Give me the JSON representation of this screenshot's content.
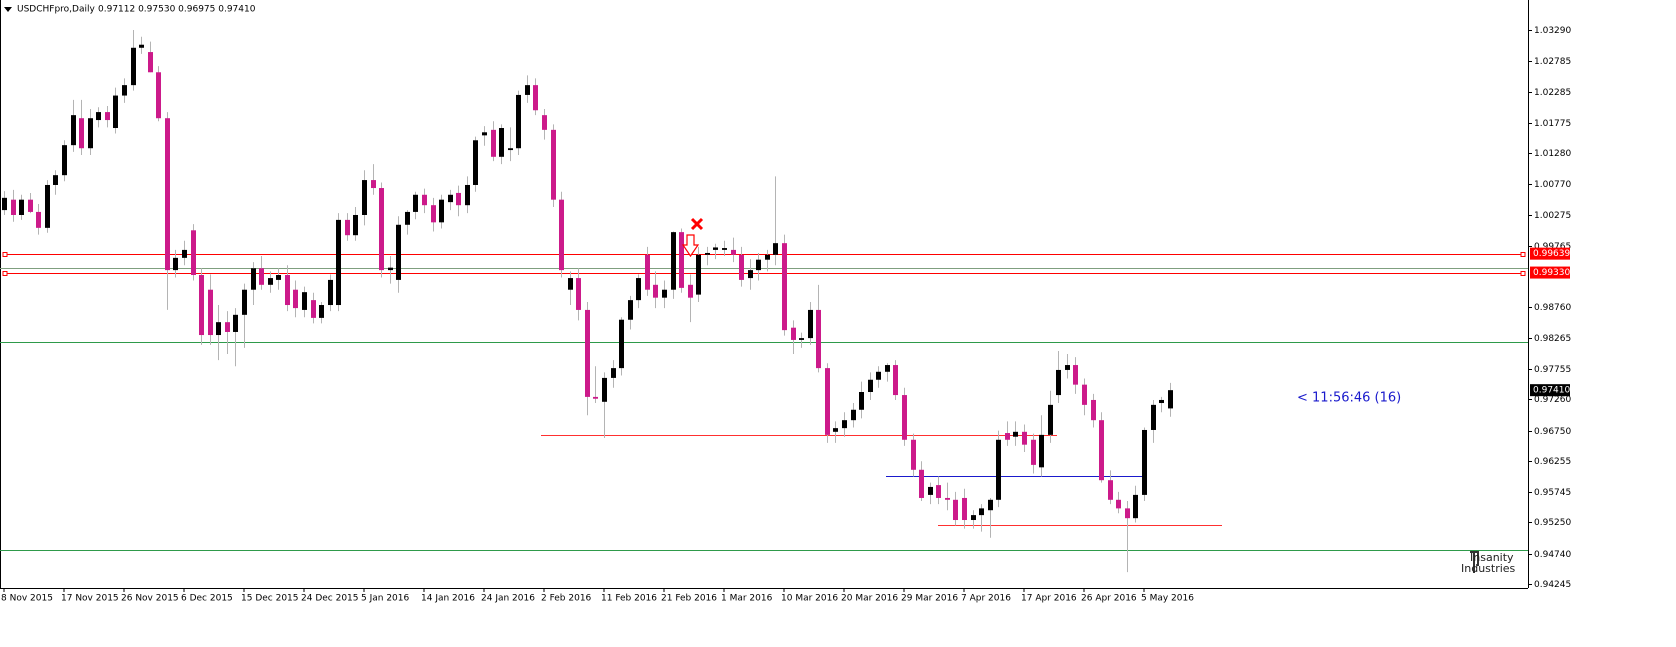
{
  "chart_data": {
    "type": "candlestick",
    "title": "USDCHFpro,Daily",
    "subtitle": "0.97112 0.97530 0.96975 0.97410",
    "x": [
      "8 Nov 2015",
      null,
      null,
      null,
      null,
      null,
      null,
      "17 Nov 2015",
      null,
      null,
      null,
      null,
      null,
      null,
      "26 Nov 2015",
      null,
      null,
      null,
      null,
      null,
      null,
      "6 Dec 2015",
      null,
      null,
      null,
      null,
      null,
      null,
      "15 Dec 2015",
      null,
      null,
      null,
      null,
      null,
      null,
      "24 Dec 2015",
      null,
      null,
      null,
      null,
      null,
      null,
      "5 Jan 2016",
      null,
      null,
      null,
      null,
      null,
      null,
      "14 Jan 2016",
      null,
      null,
      null,
      null,
      null,
      null,
      "24 Jan 2016",
      null,
      null,
      null,
      null,
      null,
      null,
      "2 Feb 2016",
      null,
      null,
      null,
      null,
      null,
      null,
      "11 Feb 2016",
      null,
      null,
      null,
      null,
      null,
      null,
      "21 Feb 2016",
      null,
      null,
      null,
      null,
      null,
      null,
      "1 Mar 2016",
      null,
      null,
      null,
      null,
      null,
      null,
      "10 Mar 2016",
      null,
      null,
      null,
      null,
      null,
      null,
      "20 Mar 2016",
      null,
      null,
      null,
      null,
      null,
      null,
      "29 Mar 2016",
      null,
      null,
      null,
      null,
      null,
      null,
      "7 Apr 2016",
      null,
      null,
      null,
      null,
      null,
      null,
      "17 Apr 2016",
      null,
      null,
      null,
      null,
      null,
      null,
      "26 Apr 2016",
      null,
      null,
      null,
      null,
      null,
      null,
      "5 May 2016",
      null,
      null,
      null
    ],
    "open": [
      1.0035,
      1.0052,
      1.0027,
      1.0052,
      1.0032,
      1.0006,
      1.0076,
      1.0092,
      1.0141,
      1.0185,
      1.0136,
      1.0182,
      1.0195,
      1.0169,
      1.0222,
      1.0239,
      1.03,
      1.0293,
      1.026,
      1.0185,
      0.9937,
      0.9957,
      1.0002,
      0.9929,
      0.9905,
      0.9831,
      0.9852,
      0.9836,
      0.9864,
      0.9905,
      0.994,
      0.9913,
      0.9921,
      0.9929,
      0.9905,
      0.9872,
      0.9888,
      0.9859,
      0.988,
      0.988,
      1.0019,
      0.9994,
      1.0027,
      1.0084,
      1.0071,
      0.9937,
      0.9921,
      1.0011,
      1.0032,
      1.006,
      1.0043,
      1.0015,
      1.0048,
      1.0063,
      1.0043,
      1.0076,
      1.0157,
      1.0166,
      1.0122,
      1.0133,
      1.0136,
      1.0223,
      1.0239,
      1.019,
      1.0166,
      1.0052,
      0.9905,
      0.9924,
      0.9872,
      0.973,
      0.9722,
      0.9761,
      0.9777,
      0.9856,
      0.9888,
      0.9962,
      0.9913,
      0.9892,
      0.9905,
      0.9999,
      0.9913,
      0.9897,
      0.9962,
      0.997,
      0.997,
      0.997,
      0.9962,
      0.9924,
      0.9937,
      0.9954,
      0.9962,
      0.9981,
      0.9843,
      0.9823,
      0.9826,
      0.9872,
      0.9777,
      0.9673,
      0.9679,
      0.9692,
      0.9709,
      0.9738,
      0.9758,
      0.9771,
      0.9782,
      0.9733,
      0.966,
      0.9611,
      0.957,
      0.9586,
      0.9565,
      0.9562,
      0.9565,
      0.9529,
      0.9537,
      0.9545,
      0.9562,
      0.9671,
      0.9665,
      0.9673,
      0.966,
      0.9615,
      0.9668,
      0.9733,
      0.9774,
      0.9782,
      0.975,
      0.9725,
      0.9692,
      0.9594,
      0.9562,
      0.9548,
      0.9532,
      0.957,
      0.9676,
      0.972,
      0.97112
    ],
    "high": [
      1.0066,
      1.0068,
      1.006,
      1.0063,
      1.0045,
      1.0084,
      1.01,
      1.0149,
      1.0215,
      1.0215,
      1.02,
      1.0203,
      1.0205,
      1.0235,
      1.025,
      1.0329,
      1.0318,
      1.031,
      1.027,
      1.0195,
      0.997,
      0.9985,
      1.0012,
      0.994,
      0.993,
      0.988,
      0.987,
      0.9875,
      0.9915,
      0.995,
      0.996,
      0.9935,
      0.994,
      0.9945,
      0.992,
      0.991,
      0.99,
      0.9885,
      0.993,
      1.003,
      1.003,
      1.004,
      1.01,
      1.011,
      1.008,
      0.996,
      1.0025,
      1.0035,
      1.0065,
      1.007,
      1.0055,
      1.006,
      1.0068,
      1.0075,
      1.009,
      1.0155,
      1.0172,
      1.018,
      1.0175,
      1.017,
      1.023,
      1.0255,
      1.025,
      1.02,
      1.0175,
      1.0065,
      0.9935,
      0.994,
      0.9885,
      0.978,
      0.977,
      0.979,
      0.986,
      0.9895,
      0.993,
      0.9975,
      0.9935,
      0.992,
      1.0,
      1.0005,
      0.993,
      0.9975,
      0.9975,
      0.998,
      0.9985,
      0.999,
      0.9975,
      0.9955,
      0.9965,
      0.997,
      1.009,
      0.9995,
      0.9855,
      0.9835,
      0.9885,
      0.9913,
      0.9785,
      0.969,
      0.9705,
      0.972,
      0.9755,
      0.977,
      0.978,
      0.9785,
      0.979,
      0.9745,
      0.967,
      0.9625,
      0.959,
      0.96,
      0.959,
      0.9575,
      0.958,
      0.9545,
      0.9555,
      0.9565,
      0.9675,
      0.969,
      0.969,
      0.9685,
      0.967,
      0.97,
      0.974,
      0.9805,
      0.98,
      0.9795,
      0.976,
      0.9735,
      0.9705,
      0.961,
      0.9575,
      0.956,
      0.9585,
      0.968,
      0.9725,
      0.973,
      0.9753
    ],
    "low": [
      1.0027,
      1.0016,
      1.0019,
      1.003,
      0.9995,
      0.9998,
      1.006,
      1.0082,
      1.013,
      1.0125,
      1.0125,
      1.017,
      1.017,
      1.016,
      1.021,
      1.023,
      1.029,
      1.026,
      1.018,
      0.9872,
      0.9925,
      0.9945,
      0.992,
      0.9815,
      0.9815,
      0.979,
      0.98,
      0.978,
      0.981,
      0.988,
      0.9905,
      0.99,
      0.9905,
      0.987,
      0.986,
      0.986,
      0.985,
      0.985,
      0.987,
      0.987,
      0.9985,
      0.9985,
      1.001,
      1.006,
      0.9925,
      0.9915,
      0.99,
      0.9995,
      1.002,
      1.003,
      1.0,
      1.0005,
      1.0035,
      1.0025,
      1.003,
      1.0065,
      1.014,
      1.0115,
      1.011,
      1.0115,
      1.0125,
      1.021,
      1.019,
      1.015,
      1.004,
      0.9925,
      0.988,
      0.9855,
      0.97,
      0.972,
      0.9663,
      0.9745,
      0.9765,
      0.984,
      0.9875,
      0.9895,
      0.9875,
      0.9875,
      0.989,
      0.99,
      0.9852,
      0.9885,
      0.9945,
      0.9955,
      0.996,
      0.995,
      0.991,
      0.9905,
      0.992,
      0.9935,
      0.9945,
      0.983,
      0.98,
      0.981,
      0.9815,
      0.977,
      0.9655,
      0.9655,
      0.9665,
      0.968,
      0.9695,
      0.9725,
      0.9745,
      0.9755,
      0.9725,
      0.965,
      0.96,
      0.956,
      0.9555,
      0.9555,
      0.9545,
      0.952,
      0.9515,
      0.9515,
      0.951,
      0.95,
      0.955,
      0.965,
      0.965,
      0.964,
      0.9605,
      0.96,
      0.9655,
      0.972,
      0.976,
      0.9735,
      0.97,
      0.968,
      0.959,
      0.9555,
      0.954,
      0.9444,
      0.9525,
      0.956,
      0.9655,
      0.9705,
      0.96975
    ],
    "close": [
      1.0055,
      1.0027,
      1.0052,
      1.0032,
      1.0006,
      1.0076,
      1.0092,
      1.0141,
      1.019,
      1.0136,
      1.0185,
      1.0195,
      1.0182,
      1.0222,
      1.0239,
      1.03,
      1.0305,
      1.026,
      1.0185,
      0.9937,
      0.9957,
      0.997,
      0.9929,
      0.9831,
      0.9831,
      0.9852,
      0.9836,
      0.9864,
      0.9905,
      0.994,
      0.9913,
      0.9924,
      0.9929,
      0.988,
      0.9875,
      0.9901,
      0.9859,
      0.988,
      0.9921,
      1.0019,
      0.9994,
      1.0027,
      1.0084,
      1.0071,
      0.9937,
      0.9941,
      1.0011,
      1.0032,
      1.006,
      1.0043,
      1.0015,
      1.0052,
      1.006,
      1.0043,
      1.0076,
      1.0149,
      1.0162,
      1.0122,
      1.0169,
      1.0136,
      1.0223,
      1.0239,
      1.0198,
      1.0166,
      1.0052,
      0.9937,
      0.9924,
      0.9872,
      0.973,
      0.9727,
      0.9761,
      0.9777,
      0.9856,
      0.9888,
      0.9924,
      0.9905,
      0.9892,
      0.9905,
      0.9999,
      0.9908,
      0.9892,
      0.9962,
      0.9965,
      0.9974,
      0.9973,
      0.9962,
      0.9921,
      0.9937,
      0.9954,
      0.9962,
      0.9981,
      0.9839,
      0.9823,
      0.9826,
      0.9872,
      0.9777,
      0.9668,
      0.9679,
      0.9692,
      0.9709,
      0.9738,
      0.9758,
      0.9771,
      0.9782,
      0.9733,
      0.966,
      0.9611,
      0.9565,
      0.9583,
      0.9565,
      0.9562,
      0.9529,
      0.9529,
      0.9537,
      0.9548,
      0.9562,
      0.966,
      0.966,
      0.9673,
      0.9652,
      0.9619,
      0.9668,
      0.9717,
      0.9774,
      0.9782,
      0.975,
      0.9717,
      0.9692,
      0.9594,
      0.9562,
      0.9548,
      0.9532,
      0.957,
      0.9676,
      0.9717,
      0.9725,
      0.9741
    ],
    "up_color": "#000000",
    "down_color": "#cc1a8a",
    "ylim": [
      0.9418,
      1.0378
    ],
    "yticks": [
      {
        "value": 1.0329,
        "label": "1.03290"
      },
      1.02785,
      1.02285,
      1.01775,
      {
        "value": 1.0128,
        "label": "1.01280"
      },
      {
        "value": 1.0077,
        "label": "1.00770"
      },
      1.00275,
      0.99765,
      {
        "value": 0.9876,
        "label": "0.98760"
      },
      0.98265,
      0.97755,
      {
        "value": 0.9726,
        "label": "0.97260"
      },
      {
        "value": 0.9675,
        "label": "0.96750"
      },
      0.96255,
      0.95745,
      {
        "value": 0.9525,
        "label": "0.95250"
      },
      {
        "value": 0.9474,
        "label": "0.94740"
      },
      0.94245
    ],
    "grid": false,
    "hlines": [
      {
        "value": 0.99639,
        "label": "0.99639",
        "color": "#ff0000"
      },
      {
        "value": 0.9933,
        "label": "0.99330",
        "color": "#ff0000"
      },
      {
        "value": 0.994,
        "color": "#7f9f7f"
      },
      {
        "value": 0.98196,
        "color": "#2e9a4a"
      },
      {
        "value": 0.948,
        "color": "#2e9a4a"
      }
    ],
    "segments": [
      {
        "value": 0.96678,
        "color": "#ff3030"
      },
      {
        "value": 0.96008,
        "color": "#1a1acc"
      },
      {
        "value": 0.95208,
        "color": "#ff3030"
      }
    ],
    "current_price": {
      "value": 0.9741,
      "label": "0.97410"
    },
    "countdown": "< 11:56:46 (16)",
    "watermark": [
      "Insanity",
      "Industries"
    ]
  }
}
